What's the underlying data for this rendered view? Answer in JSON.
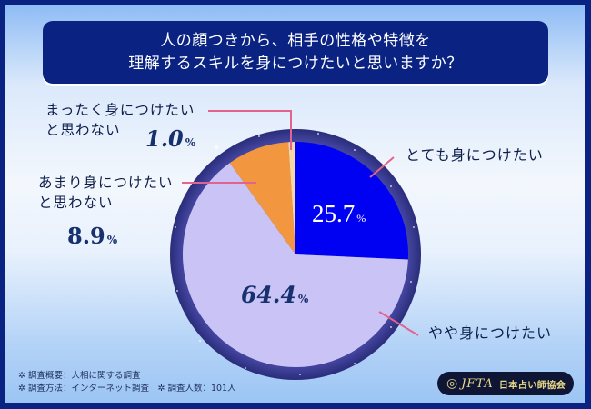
{
  "title": {
    "line1": "人の顔つきから、相手の性格や特徴を",
    "line2": "理解するスキルを身につけたいと思いますか？"
  },
  "chart_data": {
    "type": "pie",
    "title": "人の顔つきから、相手の性格や特徴を理解するスキルを身につけたいと思いますか？",
    "categories": [
      "とても身につけたい",
      "やや身につけたい",
      "あまり身につけたいと思わない",
      "まったく身につけたいと思わない"
    ],
    "values": [
      25.7,
      64.4,
      8.9,
      1.0
    ],
    "unit": "%",
    "colors": [
      "#0000f2",
      "#cac4f6",
      "#f2973f",
      "#f6d6a4"
    ],
    "start_angle": "12 o'clock, clockwise",
    "legend_position": "callout labels with leader lines"
  },
  "labels": {
    "very": {
      "text": "とても身につけたい",
      "pct": "25.7",
      "unit": "%"
    },
    "somewhat": {
      "text": "やや身につけたい",
      "pct": "64.4",
      "unit": "%"
    },
    "not_much_l1": "あまり身につけたい",
    "not_much_l2": "と思わない",
    "not_much_pct": "8.9",
    "not_at_all_l1": "まったく身につけたい",
    "not_at_all_l2": "と思わない",
    "not_at_all_pct": "1.0",
    "unit": "%"
  },
  "notes": {
    "line1": "✲ 調査概要：人相に関する調査",
    "line2": "✲ 調査方法：インターネット調査　✲ 調査人数：101人"
  },
  "logo": {
    "mark": "◎",
    "abbr": "JFTA",
    "name": "日本占い師協会"
  },
  "colors": {
    "frame": "#0a2383",
    "leader_line": "#e0648e",
    "ring": "#3a3a8f"
  }
}
